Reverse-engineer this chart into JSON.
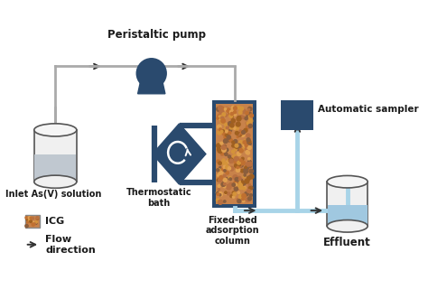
{
  "bg_color": "#ffffff",
  "dark_blue": "#2a4a6e",
  "light_blue": "#a8d4e8",
  "gray_line": "#aaaaaa",
  "icg_color": "#c8824a",
  "tank_fill": "#cccccc",
  "eff_fill": "#a8d4e8",
  "labels": {
    "pump": "Peristaltic pump",
    "inlet": "Inlet As(V) solution",
    "thermo": "Thermostatic\nbath",
    "column": "Fixed-bed\nadsorption\ncolumn",
    "sampler": "Automatic sampler",
    "effluent": "Effluent",
    "icg": "ICG",
    "flow": "Flow\ndirection"
  },
  "granule_colors": [
    "#8b5e3c",
    "#d4933a",
    "#c07030",
    "#a06020",
    "#e0a050",
    "#b87040"
  ]
}
